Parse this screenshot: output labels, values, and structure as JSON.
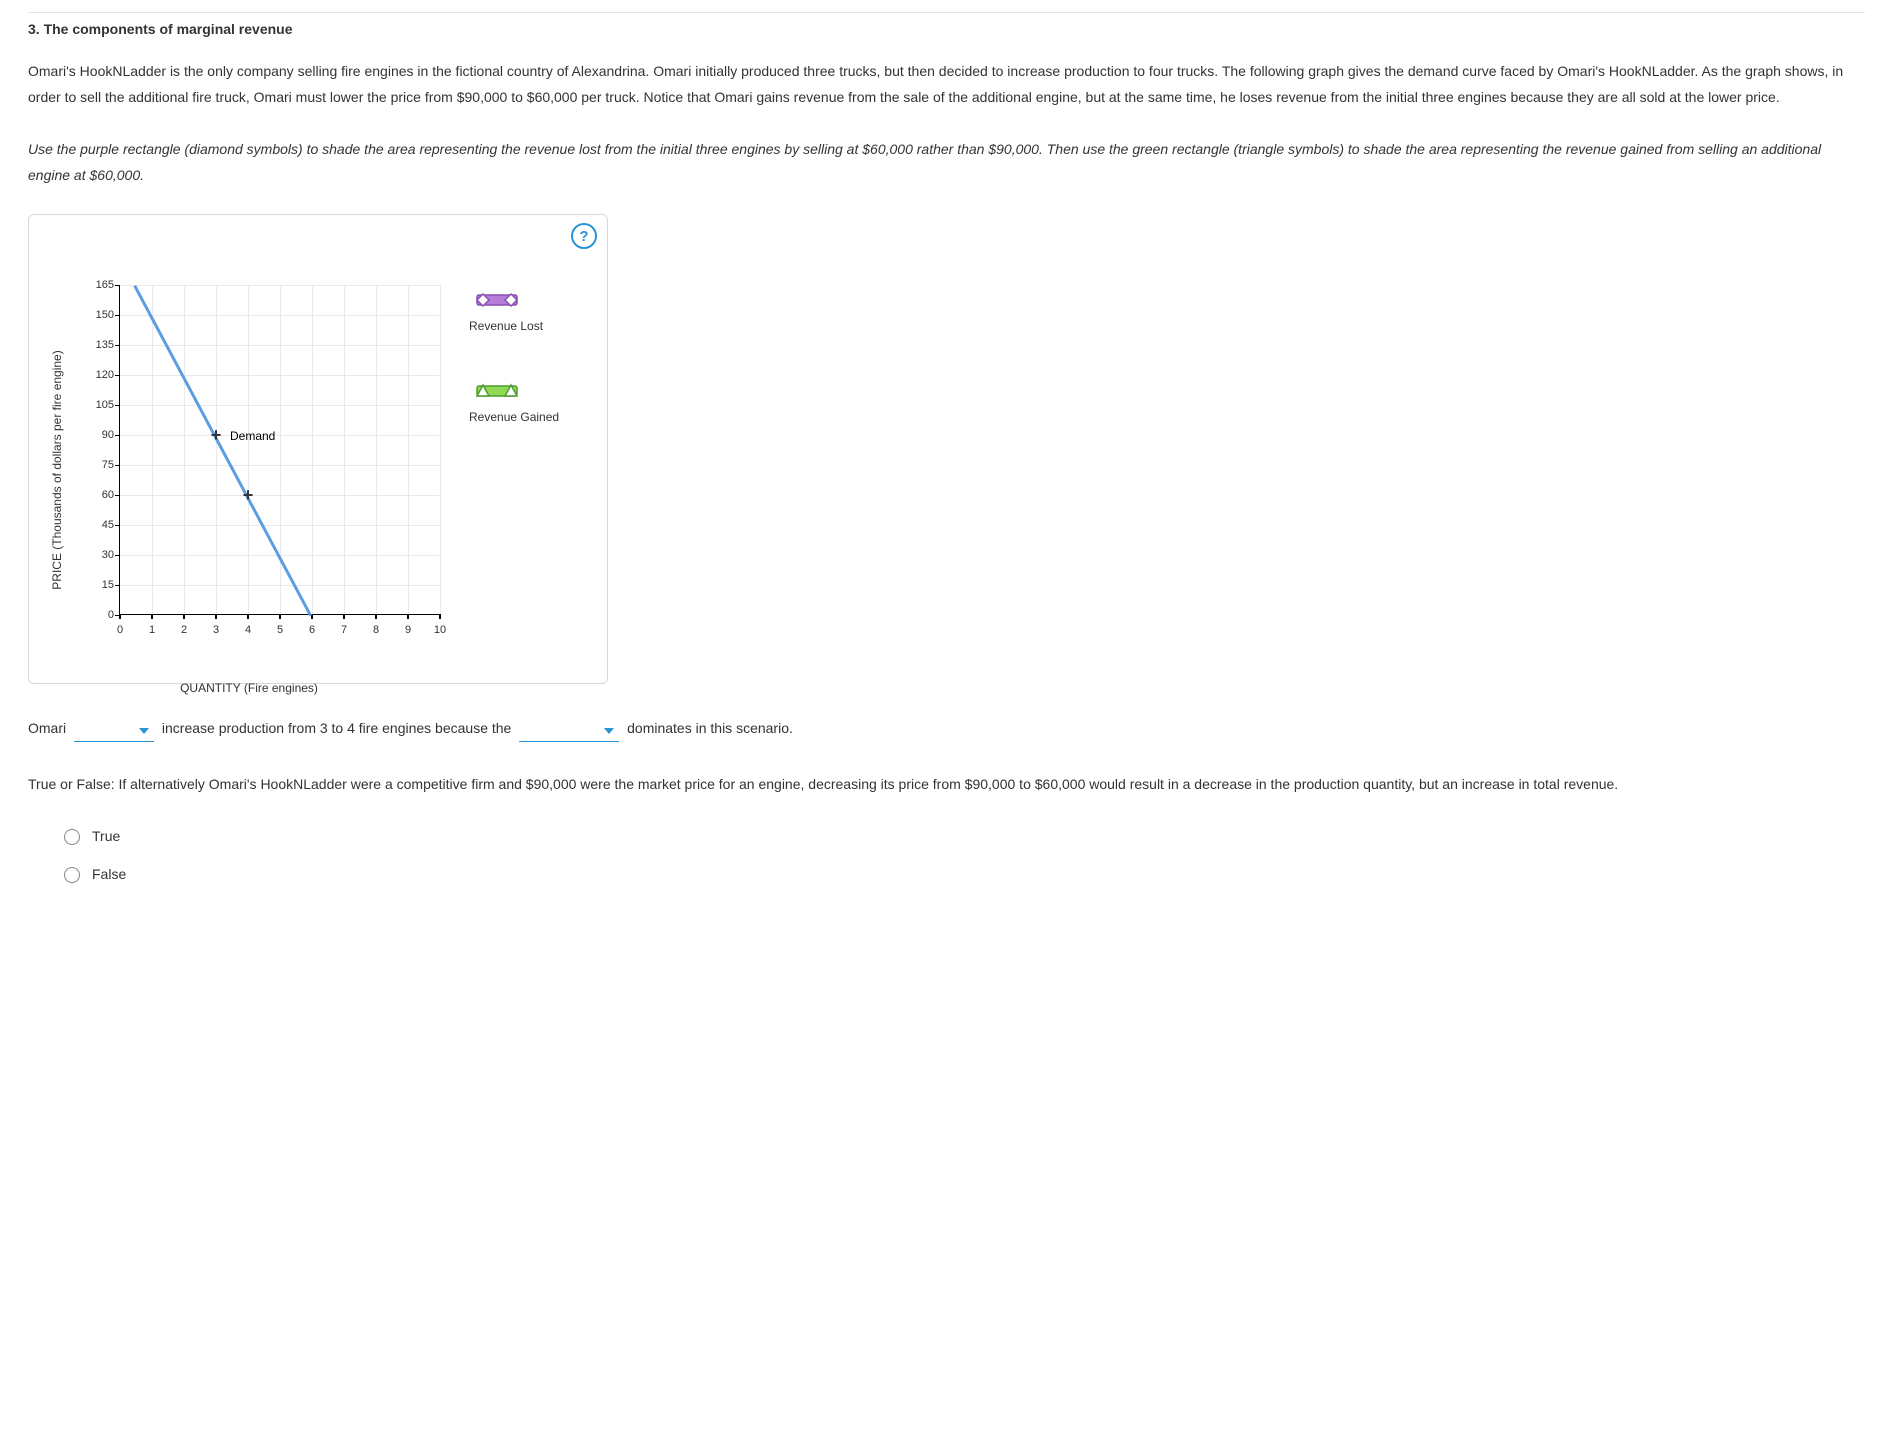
{
  "heading": "3. The components of marginal revenue",
  "paragraph1": "Omari's HookNLadder is the only company selling fire engines in the fictional country of Alexandrina. Omari initially produced three trucks, but then decided to increase production to four trucks. The following graph gives the demand curve faced by Omari's HookNLadder. As the graph shows, in order to sell the additional fire truck, Omari must lower the price from $90,000 to $60,000 per truck. Notice that Omari gains revenue from the sale of the additional engine, but at the same time, he loses revenue from the initial three engines because they are all sold at the lower price.",
  "paragraph2": "Use the purple rectangle (diamond symbols) to shade the area representing the revenue lost from the initial three engines by selling at $60,000 rather than $90,000. Then use the green rectangle (triangle symbols) to shade the area representing the revenue gained from selling an additional engine at $60,000.",
  "help_symbol": "?",
  "chart": {
    "type": "line",
    "xlabel": "QUANTITY (Fire engines)",
    "ylabel": "PRICE (Thousands of dollars per fire engine)",
    "xlim": [
      0,
      10
    ],
    "ylim": [
      0,
      165
    ],
    "xticks": [
      0,
      1,
      2,
      3,
      4,
      5,
      6,
      7,
      8,
      9,
      10
    ],
    "yticks": [
      0,
      15,
      30,
      45,
      60,
      75,
      90,
      105,
      120,
      135,
      150,
      165
    ],
    "grid_color": "#e9e9e9",
    "axis_color": "#000000",
    "background_color": "#ffffff",
    "demand": {
      "label": "Demand",
      "color": "#5a9de0",
      "line_width": 3,
      "points": [
        [
          0,
          180
        ],
        [
          6,
          0
        ]
      ],
      "markers": [
        {
          "x": 3,
          "y": 90,
          "symbol": "+"
        },
        {
          "x": 4,
          "y": 60,
          "symbol": "+"
        }
      ]
    }
  },
  "legend": {
    "lost": {
      "label": "Revenue Lost",
      "fill": "#b77ed9",
      "stroke": "#8a4fb0",
      "marker": "diamond"
    },
    "gained": {
      "label": "Revenue Gained",
      "fill": "#8fd955",
      "stroke": "#4f9a2e",
      "marker": "triangle"
    }
  },
  "fill_in": {
    "prefix": "Omari",
    "mid": "increase production from 3 to 4 fire engines because the",
    "suffix": "dominates in this scenario.",
    "dropdown_color": "#2b94d6"
  },
  "truefalse": {
    "prompt": "True or False: If alternatively Omari's HookNLadder were a competitive firm and $90,000 were the market price for an engine, decreasing its price from $90,000 to $60,000 would result in a decrease in the production quantity, but an increase in total revenue.",
    "option_true": "True",
    "option_false": "False"
  }
}
